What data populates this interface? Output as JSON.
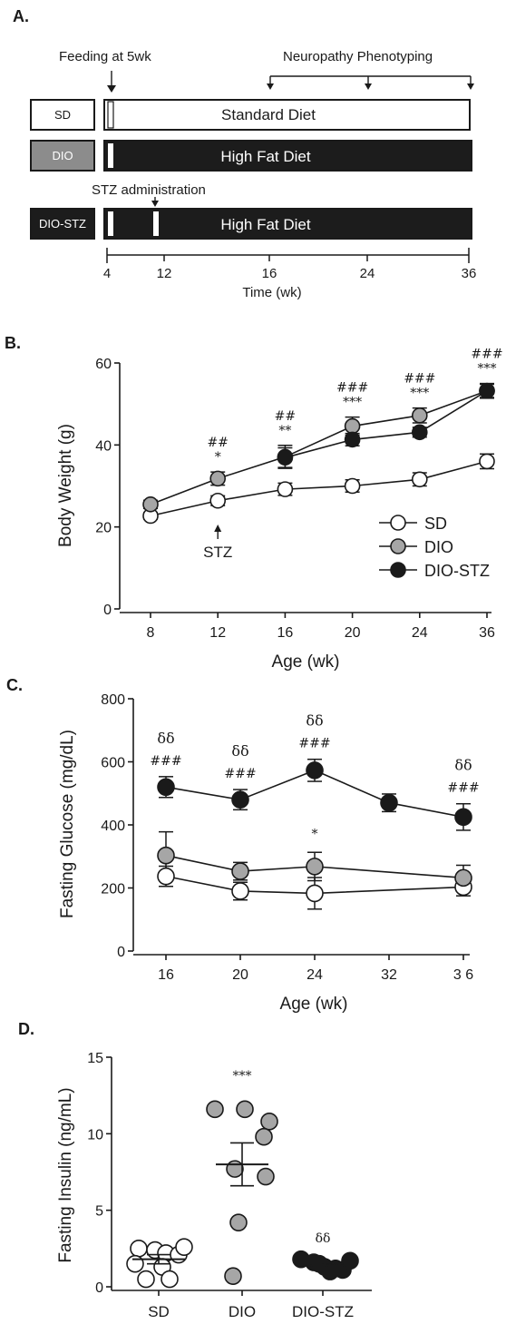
{
  "figure": {
    "panel_a": {
      "letter": "A.",
      "feeding_label": "Feeding at 5wk",
      "phenotyping_label": "Neuropathy Phenotyping",
      "stz_label": "STZ administration",
      "groups": [
        {
          "name": "SD",
          "box_fill": "#ffffff",
          "box_text_color": "#000000",
          "diet": "Standard Diet",
          "bar_fill": "#ffffff",
          "bar_text_color": "#000000"
        },
        {
          "name": "DIO",
          "box_fill": "#8c8c8c",
          "box_text_color": "#ffffff",
          "diet": "High Fat Diet",
          "bar_fill": "#1c1c1c",
          "bar_text_color": "#ffffff"
        },
        {
          "name": "DIO-STZ",
          "box_fill": "#1c1c1c",
          "box_text_color": "#ffffff",
          "diet": "High Fat Diet",
          "bar_fill": "#1c1c1c",
          "bar_text_color": "#ffffff"
        }
      ],
      "timeline_ticks": [
        "4",
        "12",
        "16",
        "24",
        "36"
      ],
      "timeline_label": "Time (wk)"
    },
    "panel_b_letter": "B.",
    "panel_c_letter": "C.",
    "panel_d_letter": "D."
  },
  "colors": {
    "sd": "#ffffff",
    "dio": "#a6a6a6",
    "dio_stz": "#1a1a1a",
    "ink": "#1a1a1a"
  },
  "chart_data": [
    {
      "id": "B",
      "type": "line",
      "xlabel": "Age  (wk)",
      "ylabel": "Body Weight  (g)",
      "categories": [
        "8",
        "12",
        "16",
        "20",
        "24",
        "36"
      ],
      "ylim": [
        0,
        60
      ],
      "yticks": [
        0,
        20,
        40,
        60
      ],
      "series": [
        {
          "name": "SD",
          "values": [
            22.7,
            26.4,
            29.2,
            30.0,
            31.6,
            36.0
          ],
          "errors": [
            0.8,
            1.2,
            1.5,
            1.5,
            1.6,
            1.8
          ]
        },
        {
          "name": "DIO",
          "values": [
            25.5,
            31.8,
            37.1,
            44.6,
            47.2,
            53.2
          ],
          "errors": [
            1.0,
            1.6,
            2.8,
            2.2,
            1.8,
            1.8
          ]
        },
        {
          "name": "DIO-STZ",
          "values": [
            null,
            null,
            36.9,
            41.3,
            43.1,
            53.2
          ],
          "errors": [
            null,
            null,
            2.4,
            1.5,
            1.2,
            1.6
          ]
        }
      ],
      "annotations": [
        {
          "cat": 1,
          "lines": [
            "##",
            "*"
          ]
        },
        {
          "cat": 2,
          "lines": [
            "##",
            "**"
          ]
        },
        {
          "cat": 3,
          "lines": [
            "###",
            "***"
          ]
        },
        {
          "cat": 4,
          "lines": [
            "###",
            "***"
          ]
        },
        {
          "cat": 5,
          "lines": [
            "###",
            "***"
          ]
        }
      ],
      "arrow_annotation": {
        "cat": 1,
        "text": "STZ"
      },
      "legend_position": "right"
    },
    {
      "id": "C",
      "type": "line",
      "xlabel": "Age  (wk)",
      "ylabel": "Fasting Glucose (mg/dL)",
      "categories": [
        "16",
        "20",
        "24",
        "32",
        "3 6"
      ],
      "ylim": [
        0,
        800
      ],
      "yticks": [
        0,
        200,
        400,
        600,
        800
      ],
      "series": [
        {
          "name": "SD",
          "values": [
            237,
            190,
            183,
            null,
            203
          ],
          "errors": [
            32,
            28,
            50,
            null,
            28
          ]
        },
        {
          "name": "DIO",
          "values": [
            303,
            253,
            268,
            null,
            232
          ],
          "errors": [
            75,
            28,
            45,
            null,
            40
          ]
        },
        {
          "name": "DIO-STZ",
          "values": [
            520,
            480,
            573,
            470,
            425
          ],
          "errors": [
            33,
            32,
            35,
            28,
            42
          ]
        }
      ],
      "annotations": [
        {
          "cat": 0,
          "lines": [
            "δδ",
            "###"
          ]
        },
        {
          "cat": 1,
          "lines": [
            "δδ",
            "###"
          ]
        },
        {
          "cat": 2,
          "lines": [
            "δδ",
            "###"
          ]
        },
        {
          "cat": 4,
          "lines": [
            "δδ",
            "###"
          ]
        }
      ],
      "extra_annotations": [
        {
          "cat": 2,
          "value": 375,
          "text": "*"
        }
      ]
    },
    {
      "id": "D",
      "type": "scatter",
      "ylabel": "Fasting Insulin (ng/mL)",
      "categories": [
        "SD",
        "DIO",
        "DIO-STZ"
      ],
      "ylim": [
        0,
        15
      ],
      "yticks": [
        0,
        5,
        10,
        15
      ],
      "groups": [
        {
          "name": "SD",
          "points": [
            2.5,
            2.4,
            2.2,
            2.1,
            1.5,
            1.3,
            0.5,
            0.5,
            2.6
          ],
          "mean": 1.8,
          "sem": 0.3
        },
        {
          "name": "DIO",
          "points": [
            11.6,
            11.6,
            10.8,
            9.8,
            7.7,
            7.2,
            4.2,
            0.7
          ],
          "mean": 8.0,
          "sem": 1.4
        },
        {
          "name": "DIO-STZ",
          "points": [
            1.8,
            1.6,
            1.3,
            1.2,
            1.1,
            1.0,
            1.7,
            1.5
          ],
          "mean": 1.4,
          "sem": 0.15
        }
      ],
      "annotations": [
        {
          "cat": 1,
          "text": "***"
        },
        {
          "cat": 2,
          "text": "δδ"
        }
      ]
    }
  ]
}
